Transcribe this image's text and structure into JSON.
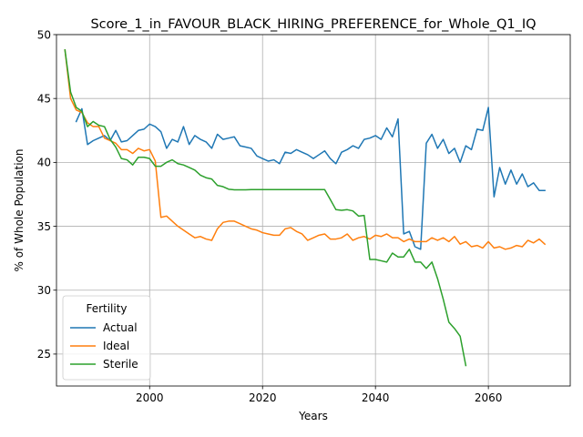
{
  "chart_data": {
    "type": "line",
    "title": "Score_1_in_FAVOUR_BLACK_HIRING_PREFERENCE_for_Whole_Q1_IQ",
    "xlabel": "Years",
    "ylabel": "% of Whole Population",
    "xlim": [
      1983.5,
      2074.5
    ],
    "ylim": [
      22.5,
      50
    ],
    "xticks": [
      2000,
      2020,
      2040,
      2060
    ],
    "yticks": [
      25,
      30,
      35,
      40,
      45,
      50
    ],
    "grid": true,
    "legend": {
      "title": "Fertility",
      "placement": "lower-left",
      "entries": [
        "Actual",
        "Ideal",
        "Sterile"
      ]
    },
    "series": [
      {
        "name": "Actual",
        "color": "#1f77b4",
        "x": [
          1987,
          1988,
          1989,
          1990,
          1991,
          1992,
          1993,
          1994,
          1995,
          1996,
          1997,
          1998,
          1999,
          2000,
          2001,
          2002,
          2003,
          2004,
          2005,
          2006,
          2007,
          2008,
          2009,
          2010,
          2011,
          2012,
          2013,
          2014,
          2015,
          2016,
          2017,
          2018,
          2019,
          2020,
          2021,
          2022,
          2023,
          2024,
          2025,
          2026,
          2027,
          2028,
          2029,
          2030,
          2031,
          2032,
          2033,
          2034,
          2035,
          2036,
          2037,
          2038,
          2039,
          2040,
          2041,
          2042,
          2043,
          2044,
          2045,
          2046,
          2047,
          2048,
          2049,
          2050,
          2051,
          2052,
          2053,
          2054,
          2055,
          2056,
          2057,
          2058,
          2059,
          2060,
          2061,
          2062,
          2063,
          2064,
          2065,
          2066,
          2067,
          2068,
          2069,
          2070
        ],
        "values": [
          43.2,
          44.2,
          41.4,
          41.7,
          41.9,
          42.1,
          41.7,
          42.5,
          41.6,
          41.7,
          42.1,
          42.5,
          42.6,
          43.0,
          42.8,
          42.4,
          41.1,
          41.8,
          41.6,
          42.8,
          41.4,
          42.1,
          41.8,
          41.6,
          41.1,
          42.2,
          41.8,
          41.9,
          42.0,
          41.3,
          41.2,
          41.1,
          40.5,
          40.3,
          40.1,
          40.2,
          39.9,
          40.8,
          40.7,
          41.0,
          40.8,
          40.6,
          40.3,
          40.6,
          40.9,
          40.3,
          39.9,
          40.8,
          41.0,
          41.3,
          41.1,
          41.8,
          41.9,
          42.1,
          41.8,
          42.7,
          42.0,
          43.4,
          34.4,
          34.6,
          33.4,
          33.2,
          41.5,
          42.2,
          41.1,
          41.8,
          40.7,
          41.1,
          40.0,
          41.3,
          41.0,
          42.6,
          42.5,
          44.3,
          37.3,
          39.6,
          38.3,
          39.4,
          38.3,
          39.1,
          38.1,
          38.4,
          37.8,
          37.8
        ]
      },
      {
        "name": "Ideal",
        "color": "#ff7f0e",
        "x": [
          1985,
          1986,
          1987,
          1988,
          1989,
          1990,
          1991,
          1992,
          1993,
          1994,
          1995,
          1996,
          1997,
          1998,
          1999,
          2000,
          2001,
          2002,
          2003,
          2004,
          2005,
          2006,
          2007,
          2008,
          2009,
          2010,
          2011,
          2012,
          2013,
          2014,
          2015,
          2016,
          2017,
          2018,
          2019,
          2020,
          2021,
          2022,
          2023,
          2024,
          2025,
          2026,
          2027,
          2028,
          2029,
          2030,
          2031,
          2032,
          2033,
          2034,
          2035,
          2036,
          2037,
          2038,
          2039,
          2040,
          2041,
          2042,
          2043,
          2044,
          2045,
          2046,
          2047,
          2048,
          2049,
          2050,
          2051,
          2052,
          2053,
          2054,
          2055,
          2056,
          2057,
          2058,
          2059,
          2060,
          2061,
          2062,
          2063,
          2064,
          2065,
          2066,
          2067,
          2068,
          2069,
          2070
        ],
        "values": [
          48.8,
          45.0,
          44.1,
          43.9,
          43.1,
          42.8,
          42.8,
          41.9,
          41.7,
          41.5,
          41.0,
          41.0,
          40.7,
          41.1,
          40.9,
          41.0,
          40.1,
          35.7,
          35.8,
          35.4,
          35.0,
          34.7,
          34.4,
          34.1,
          34.2,
          34.0,
          33.9,
          34.8,
          35.3,
          35.4,
          35.4,
          35.2,
          35.0,
          34.8,
          34.7,
          34.5,
          34.4,
          34.3,
          34.3,
          34.8,
          34.9,
          34.6,
          34.4,
          33.9,
          34.1,
          34.3,
          34.4,
          34.0,
          34.0,
          34.1,
          34.4,
          33.9,
          34.1,
          34.2,
          34.0,
          34.3,
          34.2,
          34.4,
          34.1,
          34.1,
          33.8,
          34.0,
          33.8,
          33.8,
          33.8,
          34.1,
          33.9,
          34.1,
          33.8,
          34.2,
          33.6,
          33.8,
          33.4,
          33.5,
          33.3,
          33.8,
          33.3,
          33.4,
          33.2,
          33.3,
          33.5,
          33.4,
          33.9,
          33.7,
          34.0,
          33.6
        ]
      },
      {
        "name": "Sterile",
        "color": "#2ca02c",
        "x": [
          1985,
          1986,
          1987,
          1988,
          1989,
          1990,
          1991,
          1992,
          1993,
          1994,
          1995,
          1996,
          1997,
          1998,
          1999,
          2000,
          2001,
          2002,
          2003,
          2004,
          2005,
          2006,
          2007,
          2008,
          2009,
          2010,
          2011,
          2012,
          2013,
          2014,
          2015,
          2016,
          2017,
          2018,
          2019,
          2020,
          2021,
          2022,
          2023,
          2024,
          2025,
          2026,
          2027,
          2028,
          2029,
          2030,
          2031,
          2032,
          2033,
          2034,
          2035,
          2036,
          2037,
          2038,
          2039,
          2040,
          2041,
          2042,
          2043,
          2044,
          2045,
          2046,
          2047,
          2048,
          2049,
          2050,
          2051,
          2052,
          2053,
          2054,
          2055,
          2056
        ],
        "values": [
          48.8,
          45.5,
          44.3,
          44.0,
          42.8,
          43.2,
          42.9,
          42.8,
          41.8,
          41.2,
          40.3,
          40.2,
          39.8,
          40.4,
          40.4,
          40.3,
          39.7,
          39.7,
          40.0,
          40.2,
          39.9,
          39.8,
          39.6,
          39.4,
          39.0,
          38.8,
          38.7,
          38.2,
          38.1,
          37.9,
          37.85,
          37.85,
          37.85,
          37.87,
          37.87,
          37.87,
          37.87,
          37.87,
          37.87,
          37.87,
          37.87,
          37.87,
          37.87,
          37.87,
          37.87,
          37.87,
          37.87,
          37.1,
          36.3,
          36.25,
          36.3,
          36.2,
          35.8,
          35.85,
          32.4,
          32.4,
          32.3,
          32.2,
          32.9,
          32.6,
          32.6,
          33.2,
          32.2,
          32.2,
          31.7,
          32.2,
          30.9,
          29.3,
          27.5,
          27.0,
          26.4,
          24.1
        ]
      }
    ]
  }
}
